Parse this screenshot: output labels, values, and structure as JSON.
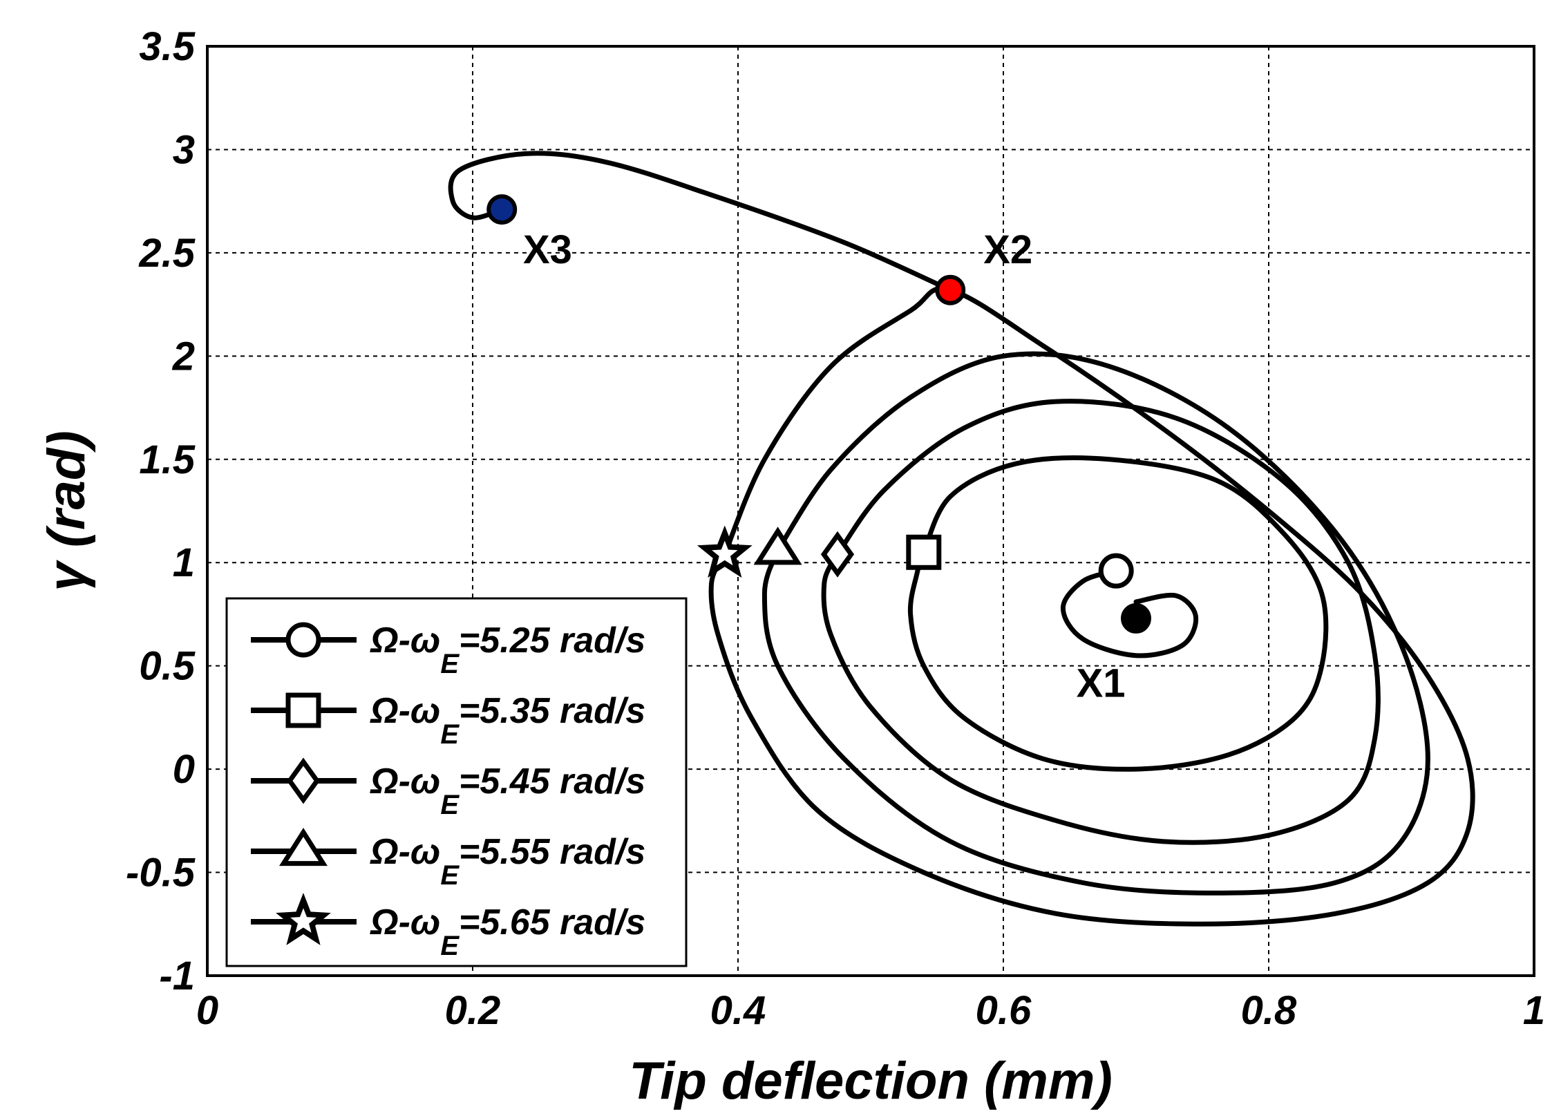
{
  "chart_data": {
    "type": "line",
    "xlabel": "Tip deflection (mm)",
    "ylabel": "γ (rad)",
    "xlim": [
      0,
      1
    ],
    "ylim": [
      -1,
      3.5
    ],
    "xticks": [
      0,
      0.2,
      0.4,
      0.6,
      0.8,
      1
    ],
    "xtick_labels": [
      "0",
      "0.2",
      "0.4",
      "0.6",
      "0.8",
      "1"
    ],
    "yticks": [
      -1,
      -0.5,
      0,
      0.5,
      1,
      1.5,
      2,
      2.5,
      3,
      3.5
    ],
    "ytick_labels": [
      "-1",
      "-0.5",
      "0",
      "0.5",
      "1",
      "1.5",
      "2",
      "2.5",
      "3",
      "3.5"
    ],
    "grid": true,
    "legend_position": "bottom-left",
    "series": [
      {
        "name": "Ω-ωE=5.25 rad/s",
        "legend_prefix": "Ω-ω",
        "legend_sub": "E",
        "legend_suffix": "=5.25 rad/s",
        "marker": "circle",
        "marker_point": [
          0.685,
          0.96
        ],
        "x": [
          0.685,
          0.66,
          0.645,
          0.66,
          0.7,
          0.735,
          0.745,
          0.73,
          0.7
        ],
        "y": [
          0.96,
          0.91,
          0.78,
          0.63,
          0.55,
          0.6,
          0.74,
          0.84,
          0.81
        ]
      },
      {
        "name": "Ω-ωE=5.35 rad/s",
        "legend_prefix": "Ω-ω",
        "legend_sub": "E",
        "legend_suffix": "=5.35 rad/s",
        "marker": "square",
        "marker_point": [
          0.54,
          1.05
        ],
        "x": [
          0.54,
          0.56,
          0.61,
          0.68,
          0.76,
          0.81,
          0.84,
          0.84,
          0.82,
          0.77,
          0.7,
          0.63,
          0.57,
          0.54,
          0.53,
          0.535,
          0.54
        ],
        "y": [
          1.05,
          1.32,
          1.48,
          1.5,
          1.4,
          1.15,
          0.85,
          0.5,
          0.25,
          0.07,
          0.0,
          0.05,
          0.25,
          0.5,
          0.75,
          0.95,
          1.05
        ]
      },
      {
        "name": "Ω-ωE=5.45 rad/s",
        "legend_prefix": "Ω-ω",
        "legend_sub": "E",
        "legend_suffix": "=5.45 rad/s",
        "marker": "diamond",
        "marker_point": [
          0.475,
          1.04
        ],
        "x": [
          0.475,
          0.51,
          0.57,
          0.64,
          0.73,
          0.81,
          0.86,
          0.88,
          0.88,
          0.86,
          0.8,
          0.72,
          0.64,
          0.56,
          0.5,
          0.47,
          0.465,
          0.475
        ],
        "y": [
          1.04,
          1.35,
          1.65,
          1.78,
          1.7,
          1.4,
          1.0,
          0.55,
          0.15,
          -0.15,
          -0.32,
          -0.35,
          -0.25,
          -0.05,
          0.3,
          0.65,
          0.9,
          1.04
        ]
      },
      {
        "name": "Ω-ωE=5.55 rad/s",
        "legend_prefix": "Ω-ω",
        "legend_sub": "E",
        "legend_suffix": "=5.55 rad/s",
        "marker": "triangle",
        "marker_point": [
          0.43,
          1.06
        ],
        "x": [
          0.43,
          0.47,
          0.53,
          0.6,
          0.68,
          0.77,
          0.85,
          0.9,
          0.92,
          0.9,
          0.85,
          0.76,
          0.66,
          0.56,
          0.48,
          0.43,
          0.42,
          0.43
        ],
        "y": [
          1.06,
          1.45,
          1.8,
          2.0,
          1.95,
          1.65,
          1.15,
          0.6,
          0.05,
          -0.35,
          -0.55,
          -0.6,
          -0.55,
          -0.35,
          0.05,
          0.5,
          0.85,
          1.06
        ]
      },
      {
        "name": "Ω-ωE=5.65 rad/s",
        "legend_prefix": "Ω-ω",
        "legend_sub": "E",
        "legend_suffix": "=5.65 rad/s",
        "marker": "star",
        "marker_point": [
          0.39,
          1.04
        ],
        "x": [
          0.39,
          0.42,
          0.47,
          0.53,
          0.56,
          0.63,
          0.72,
          0.8,
          0.87,
          0.92,
          0.95,
          0.95,
          0.92,
          0.85,
          0.75,
          0.64,
          0.54,
          0.46,
          0.41,
          0.385,
          0.38,
          0.39
        ],
        "y": [
          1.04,
          1.5,
          1.95,
          2.22,
          2.32,
          2.05,
          1.65,
          1.25,
          0.85,
          0.45,
          0.05,
          -0.3,
          -0.55,
          -0.7,
          -0.75,
          -0.7,
          -0.5,
          -0.2,
          0.25,
          0.65,
          0.9,
          1.04
        ]
      },
      {
        "name": "",
        "marker": "none",
        "x": [
          0.56,
          0.48,
          0.38,
          0.3,
          0.24,
          0.19,
          0.185,
          0.2,
          0.222
        ],
        "y": [
          2.32,
          2.55,
          2.78,
          2.94,
          2.98,
          2.9,
          2.75,
          2.67,
          2.71
        ]
      }
    ],
    "points": [
      {
        "label": "X1",
        "x": 0.7,
        "y": 0.73,
        "color": "#000000",
        "label_x": 0.655,
        "label_y": 0.35
      },
      {
        "label": "X2",
        "x": 0.56,
        "y": 2.32,
        "color": "#ff0000",
        "label_x": 0.585,
        "label_y": 2.45
      },
      {
        "label": "X3",
        "x": 0.222,
        "y": 2.71,
        "color": "#0a2a8a",
        "label_x": 0.238,
        "label_y": 2.45
      }
    ]
  }
}
